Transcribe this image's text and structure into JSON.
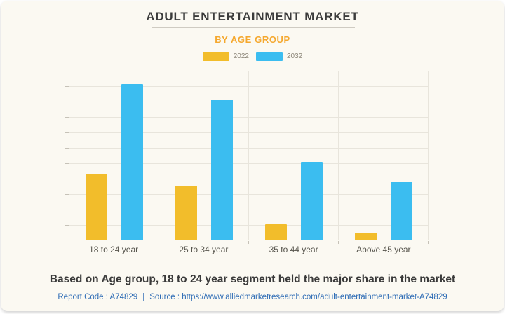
{
  "header": {
    "title": "ADULT ENTERTAINMENT MARKET",
    "subtitle": "BY AGE GROUP"
  },
  "legend": {
    "items": [
      {
        "label": "2022",
        "color": "#f2bd2b"
      },
      {
        "label": "2032",
        "color": "#3bbdf0"
      }
    ]
  },
  "chart_data": {
    "type": "bar",
    "title": "ADULT ENTERTAINMENT MARKET",
    "subtitle": "BY AGE GROUP",
    "categories": [
      "18 to 24 year",
      "25 to 34 year",
      "35 to 44 year",
      "Above 45 year"
    ],
    "series": [
      {
        "name": "2022",
        "color": "#f2bd2b",
        "values": [
          39,
          32,
          9,
          4
        ]
      },
      {
        "name": "2032",
        "color": "#3bbdf0",
        "values": [
          92,
          83,
          46,
          34
        ]
      }
    ],
    "xlabel": "",
    "ylabel": "",
    "ylim": [
      0,
      100
    ],
    "y_axis_tick_labels": [],
    "grid": true,
    "gridlines_horizontal": 12,
    "legend_position": "top",
    "value_units": "percent of plot height (y axis unlabeled in source)"
  },
  "footer": {
    "statement": "Based on Age group, 18 to 24 year segment held the major share in the market",
    "report_code_label": "Report Code : A74829",
    "separator": "|",
    "source_label": "Source :",
    "source_url": "https://www.alliedmarketresearch.com/adult-entertainment-market-A74829"
  },
  "colors": {
    "card_background": "#fbf9f2",
    "accent_yellow": "#f2bd2b",
    "accent_blue": "#3bbdf0",
    "subtitle_orange": "#f5a82e",
    "link_blue": "#2e6cb5",
    "title_text": "#3b3b3b",
    "gridline": "#e8e5dc"
  }
}
